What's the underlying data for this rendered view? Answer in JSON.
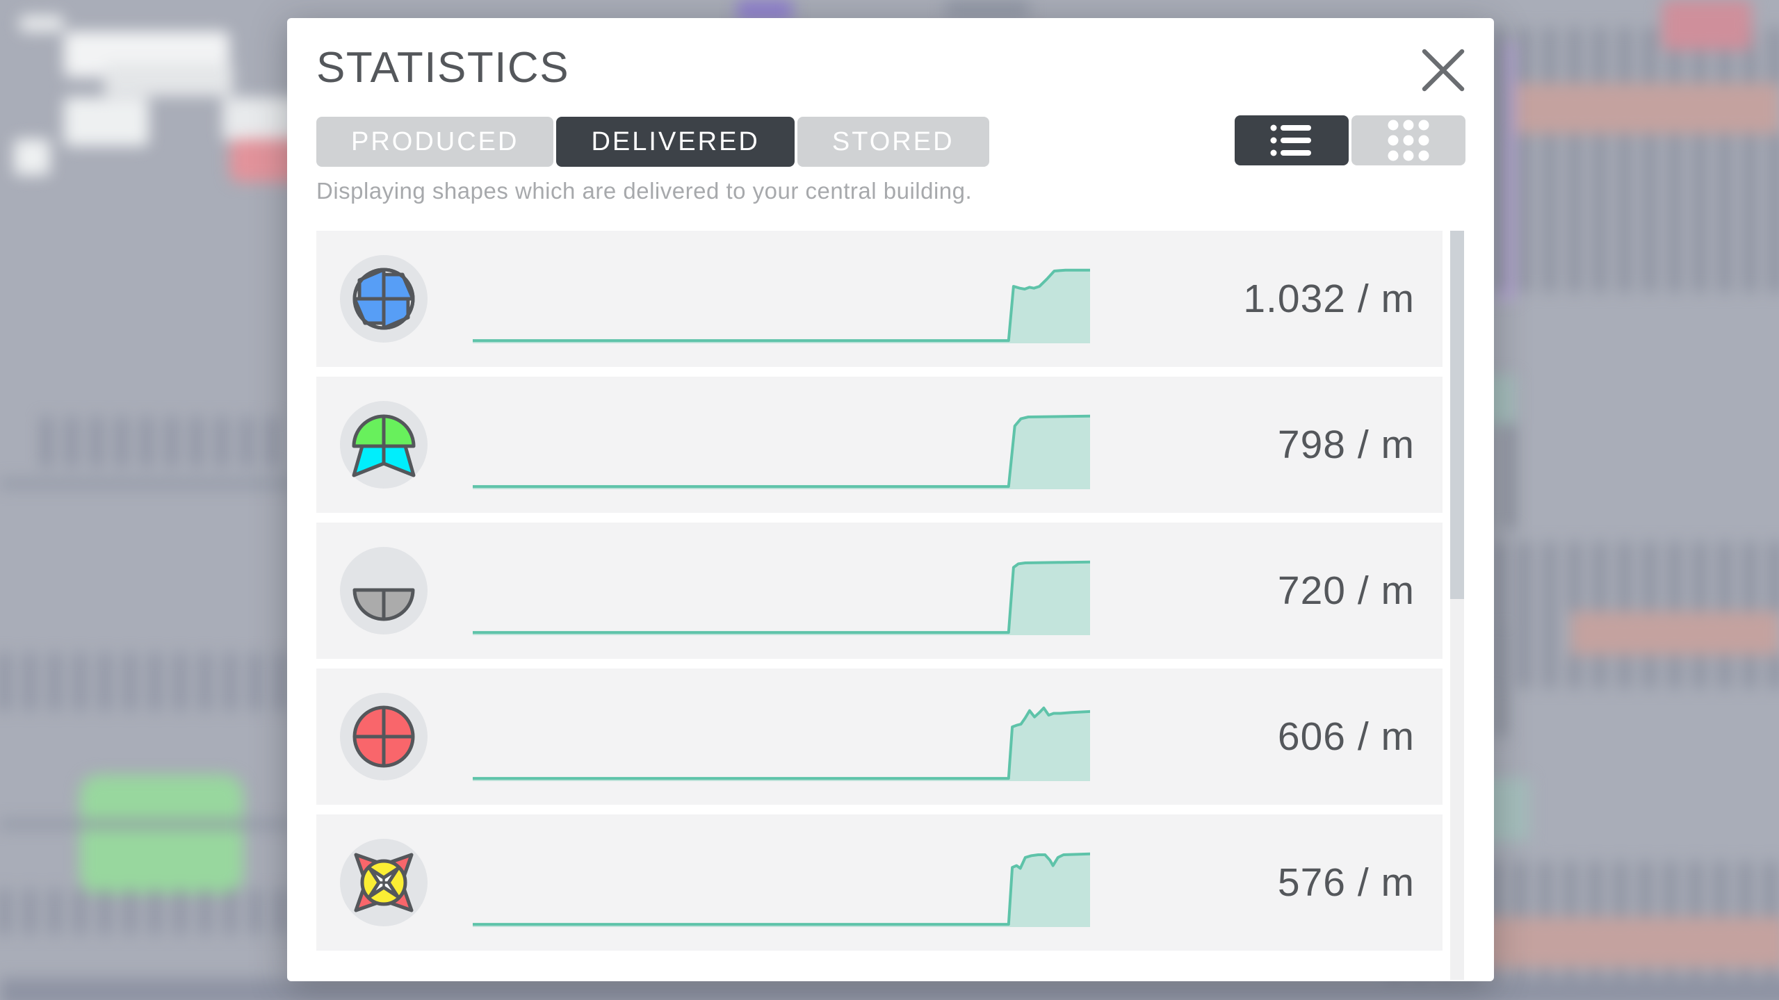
{
  "dialog": {
    "title": "STATISTICS",
    "subtitle": "Displaying shapes which are delivered to your central building.",
    "tabs": [
      {
        "id": "produced",
        "label": "PRODUCED",
        "active": false
      },
      {
        "id": "delivered",
        "label": "DELIVERED",
        "active": true
      },
      {
        "id": "stored",
        "label": "STORED",
        "active": false
      }
    ],
    "view_modes": [
      {
        "id": "list",
        "icon": "list-icon",
        "active": true
      },
      {
        "id": "grid",
        "icon": "grid-icon",
        "active": false
      }
    ]
  },
  "colors": {
    "accent_teal": "#5ec3a9",
    "accent_teal_fill": "rgba(102,198,173,0.34)",
    "tab_active_bg": "#3d4248",
    "tab_inactive_bg": "#d0d2d4",
    "shape_outline": "#54575b",
    "shape_blue": "#579ef6",
    "shape_green": "#68f05c",
    "shape_cyan": "#00eefc",
    "shape_gray": "#ababab",
    "shape_red": "#f9666b",
    "shape_yellow": "#fbee34",
    "shape_white": "#ffffff"
  },
  "chart_data": {
    "type": "area",
    "note": "per-row delivery-rate sparklines, x = time 0-100%, y = rate 0-100% of row max",
    "series_ref": "rows[].spark"
  },
  "rows": [
    {
      "icon": "shape-windmill-blue",
      "rate": "1.032 / m",
      "spark": [
        [
          0,
          3
        ],
        [
          86.8,
          3
        ],
        [
          87.6,
          63
        ],
        [
          88.6,
          61
        ],
        [
          89.4,
          60
        ],
        [
          90.2,
          62
        ],
        [
          90.9,
          61
        ],
        [
          91.8,
          63
        ],
        [
          93,
          71
        ],
        [
          94.2,
          80
        ],
        [
          96,
          81
        ],
        [
          100,
          81
        ]
      ]
    },
    {
      "icon": "shape-half-circle-green-star-cyan",
      "rate": "798 / m",
      "spark": [
        [
          0,
          3
        ],
        [
          86.8,
          3
        ],
        [
          87.8,
          70
        ],
        [
          88.8,
          78
        ],
        [
          90,
          80
        ],
        [
          100,
          81
        ]
      ]
    },
    {
      "icon": "shape-half-circle-gray",
      "rate": "720 / m",
      "spark": [
        [
          0,
          3
        ],
        [
          86.8,
          3
        ],
        [
          87.6,
          75
        ],
        [
          88.4,
          79
        ],
        [
          89.5,
          80
        ],
        [
          100,
          81
        ]
      ]
    },
    {
      "icon": "shape-circle-red",
      "rate": "606 / m",
      "spark": [
        [
          0,
          3
        ],
        [
          86.8,
          3
        ],
        [
          87.4,
          60
        ],
        [
          88.2,
          62
        ],
        [
          88.8,
          63
        ],
        [
          89.5,
          70
        ],
        [
          90.2,
          78
        ],
        [
          91,
          71
        ],
        [
          91.8,
          76
        ],
        [
          92.5,
          81
        ],
        [
          93.3,
          73
        ],
        [
          94.1,
          75
        ],
        [
          95.2,
          75
        ],
        [
          97,
          76
        ],
        [
          100,
          77
        ]
      ]
    },
    {
      "icon": "shape-star-red-circle-yellow-windmill-white",
      "rate": "576 / m",
      "spark": [
        [
          0,
          3
        ],
        [
          86.8,
          3
        ],
        [
          87.4,
          66
        ],
        [
          88.1,
          68
        ],
        [
          88.7,
          65
        ],
        [
          89.5,
          77
        ],
        [
          90.5,
          79
        ],
        [
          91.6,
          80
        ],
        [
          92.7,
          80
        ],
        [
          93.5,
          74
        ],
        [
          94,
          68
        ],
        [
          94.8,
          77
        ],
        [
          95.7,
          80
        ],
        [
          100,
          81
        ]
      ]
    }
  ]
}
